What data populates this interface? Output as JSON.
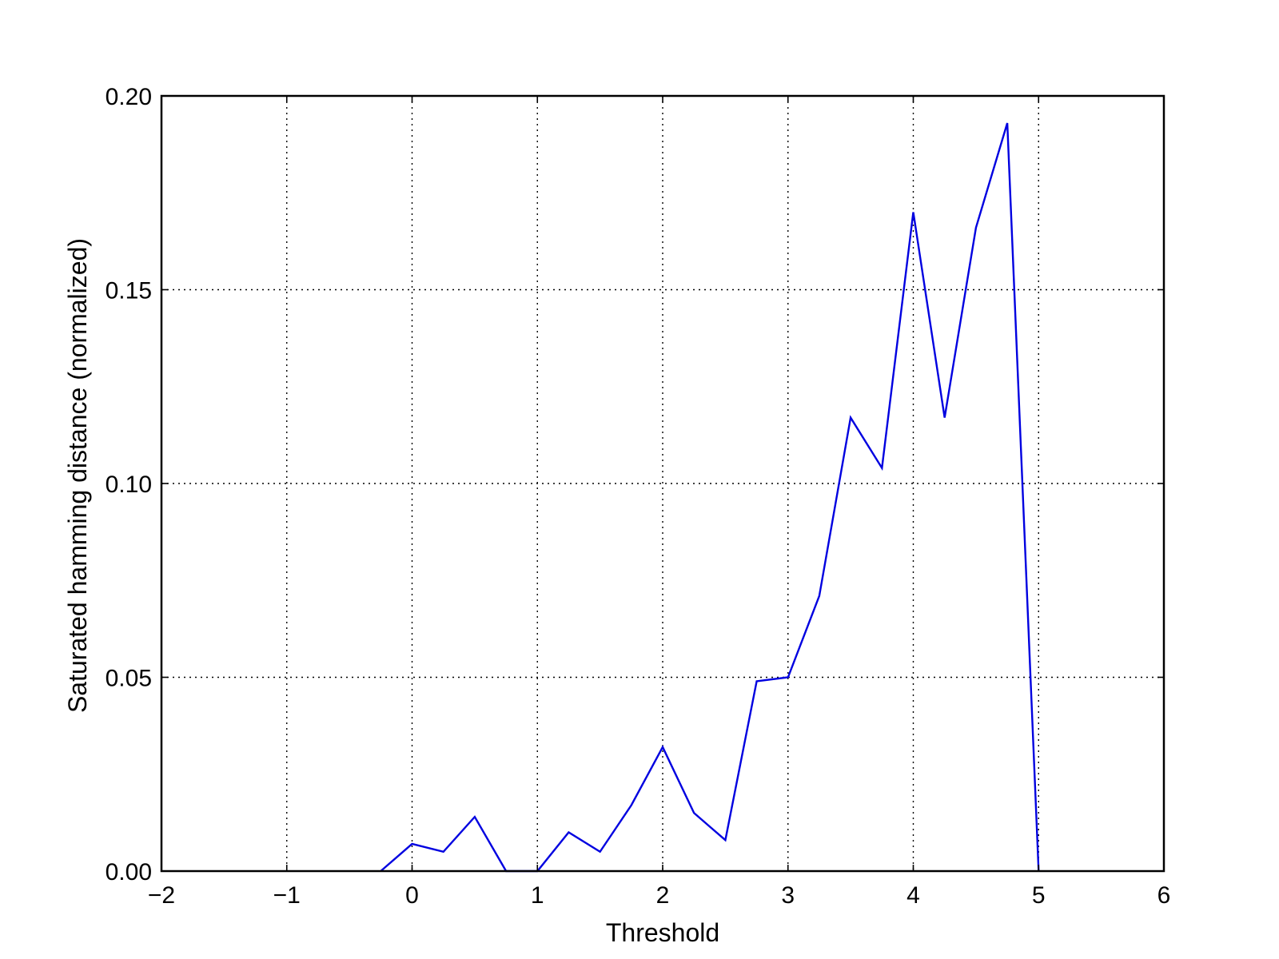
{
  "chart_data": {
    "type": "line",
    "xlabel": "Threshold",
    "ylabel": "Saturated hamming distance (normalized)",
    "xlim": [
      -2,
      6
    ],
    "ylim": [
      0,
      0.2
    ],
    "xticks": [
      -2,
      -1,
      0,
      1,
      2,
      3,
      4,
      5,
      6
    ],
    "xtick_labels": [
      "−2",
      "−1",
      "0",
      "1",
      "2",
      "3",
      "4",
      "5",
      "6"
    ],
    "yticks": [
      0,
      0.05,
      0.1,
      0.15,
      0.2
    ],
    "ytick_labels": [
      "0.00",
      "0.05",
      "0.10",
      "0.15",
      "0.20"
    ],
    "grid": true,
    "series": [
      {
        "color": "#0000e0",
        "x": [
          -0.25,
          0,
          0.25,
          0.5,
          0.75,
          1,
          1.25,
          1.5,
          1.75,
          2,
          2.25,
          2.5,
          2.75,
          3,
          3.25,
          3.5,
          3.75,
          4,
          4.25,
          4.5,
          4.75,
          5
        ],
        "y": [
          0,
          0.007,
          0.005,
          0.014,
          0,
          0,
          0.01,
          0.005,
          0.017,
          0.032,
          0.015,
          0.008,
          0.049,
          0.05,
          0.071,
          0.117,
          0.104,
          0.17,
          0.117,
          0.166,
          0.193,
          0
        ]
      }
    ]
  }
}
